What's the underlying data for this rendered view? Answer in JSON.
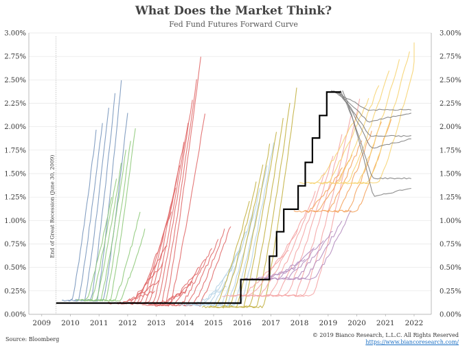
{
  "chart_data": {
    "type": "line",
    "title": "What Does the Market Think?",
    "subtitle": "Fed Fund Futures Forward Curve",
    "xlim": [
      2008.55,
      2022.6
    ],
    "ylim": [
      0,
      3.0
    ],
    "x_ticks": [
      "2009",
      "2010",
      "2011",
      "2012",
      "2013",
      "2014",
      "2015",
      "2016",
      "2017",
      "2018",
      "2019",
      "2020",
      "2021",
      "2022"
    ],
    "y_ticks": [
      "0.00%",
      "0.25%",
      "0.50%",
      "0.75%",
      "1.00%",
      "1.25%",
      "1.50%",
      "1.75%",
      "2.00%",
      "2.25%",
      "2.50%",
      "2.75%",
      "3.00%"
    ],
    "y_tick_values": [
      0,
      0.25,
      0.5,
      0.75,
      1.0,
      1.25,
      1.5,
      1.75,
      2.0,
      2.25,
      2.5,
      2.75,
      3.0
    ],
    "annotation": {
      "x": 2009.5,
      "text": "End of Great Recession (June 30, 2009)"
    },
    "grid": true,
    "effective_fed_funds": {
      "color": "#000000",
      "points": [
        [
          2009.5,
          0.12
        ],
        [
          2015.95,
          0.12
        ],
        [
          2015.95,
          0.37
        ],
        [
          2016.95,
          0.37
        ],
        [
          2016.95,
          0.62
        ],
        [
          2017.2,
          0.62
        ],
        [
          2017.2,
          0.88
        ],
        [
          2017.45,
          0.88
        ],
        [
          2017.45,
          1.12
        ],
        [
          2017.95,
          1.12
        ],
        [
          2017.95,
          1.37
        ],
        [
          2018.2,
          1.37
        ],
        [
          2018.2,
          1.62
        ],
        [
          2018.45,
          1.62
        ],
        [
          2018.45,
          1.88
        ],
        [
          2018.7,
          1.88
        ],
        [
          2018.7,
          2.12
        ],
        [
          2018.95,
          2.12
        ],
        [
          2018.95,
          2.37
        ],
        [
          2019.45,
          2.37
        ]
      ]
    },
    "forward_curves": [
      {
        "color": "#7896bc",
        "start": 2009.7,
        "end": 2011.7,
        "base": 0.15,
        "peaks": [
          1.95,
          2.05,
          2.2,
          2.35,
          2.5,
          2.15
        ]
      },
      {
        "color": "#8ec97a",
        "start": 2010.2,
        "end": 2012.3,
        "base": 0.15,
        "peaks": [
          1.25,
          1.45,
          1.6,
          1.75,
          1.85,
          2.0,
          1.1,
          0.9
        ]
      },
      {
        "color": "#e06868",
        "start": 2011.2,
        "end": 2014.4,
        "base": 0.12,
        "peaks": [
          0.25,
          0.35,
          0.55,
          0.75,
          1.1,
          1.35,
          1.6,
          1.85,
          2.05,
          2.3,
          2.5,
          2.75,
          2.15
        ]
      },
      {
        "color": "#e06868",
        "start": 2012.5,
        "end": 2015.3,
        "base": 0.1,
        "peaks": [
          0.25,
          0.35,
          0.5,
          0.6,
          0.7,
          0.8,
          0.9,
          0.95
        ]
      },
      {
        "color": "#b2d2e6",
        "start": 2013.8,
        "end": 2016.8,
        "base": 0.1,
        "peaks": [
          0.3,
          0.5,
          0.7,
          0.9,
          1.1,
          1.35,
          1.6,
          1.85
        ]
      },
      {
        "color": "#c2b040",
        "start": 2014.6,
        "end": 2017.6,
        "base": 0.08,
        "peaks": [
          1.2,
          1.4,
          1.6,
          1.8,
          1.95,
          2.1,
          2.25,
          2.4
        ]
      },
      {
        "color": "#f4a4a4",
        "start": 2015.3,
        "end": 2019.8,
        "base": 0.2,
        "peaks": [
          0.7,
          0.9,
          1.1,
          1.3,
          1.5,
          1.7,
          1.9,
          2.1,
          2.3
        ]
      },
      {
        "color": "#b48cbe",
        "start": 2016.0,
        "end": 2019.5,
        "base": 0.38,
        "peaks": [
          0.5,
          0.6,
          0.7,
          0.8,
          0.9,
          1.0,
          1.1
        ]
      },
      {
        "color": "#f4a15a",
        "start": 2017.8,
        "end": 2020.9,
        "base": 1.1,
        "peaks": [
          1.55,
          1.7,
          1.85,
          1.95,
          2.05,
          2.1
        ]
      },
      {
        "color": "#f6d370",
        "start": 2018.0,
        "end": 2021.9,
        "base": 1.4,
        "peaks": [
          2.15,
          2.3,
          2.45,
          2.6,
          2.7,
          2.8,
          2.88
        ]
      },
      {
        "color": "#808080",
        "start": 2019.1,
        "end": 2021.9,
        "base": 2.38,
        "ends": [
          2.18,
          2.15,
          1.9,
          1.87,
          1.45,
          1.35
        ]
      }
    ]
  },
  "footer": {
    "source": "Source: Bloomberg",
    "copyright": "© 2019 Bianco Research, L.L.C. All Rights Reserved",
    "url": "https://www.biancoresearch.com/"
  }
}
